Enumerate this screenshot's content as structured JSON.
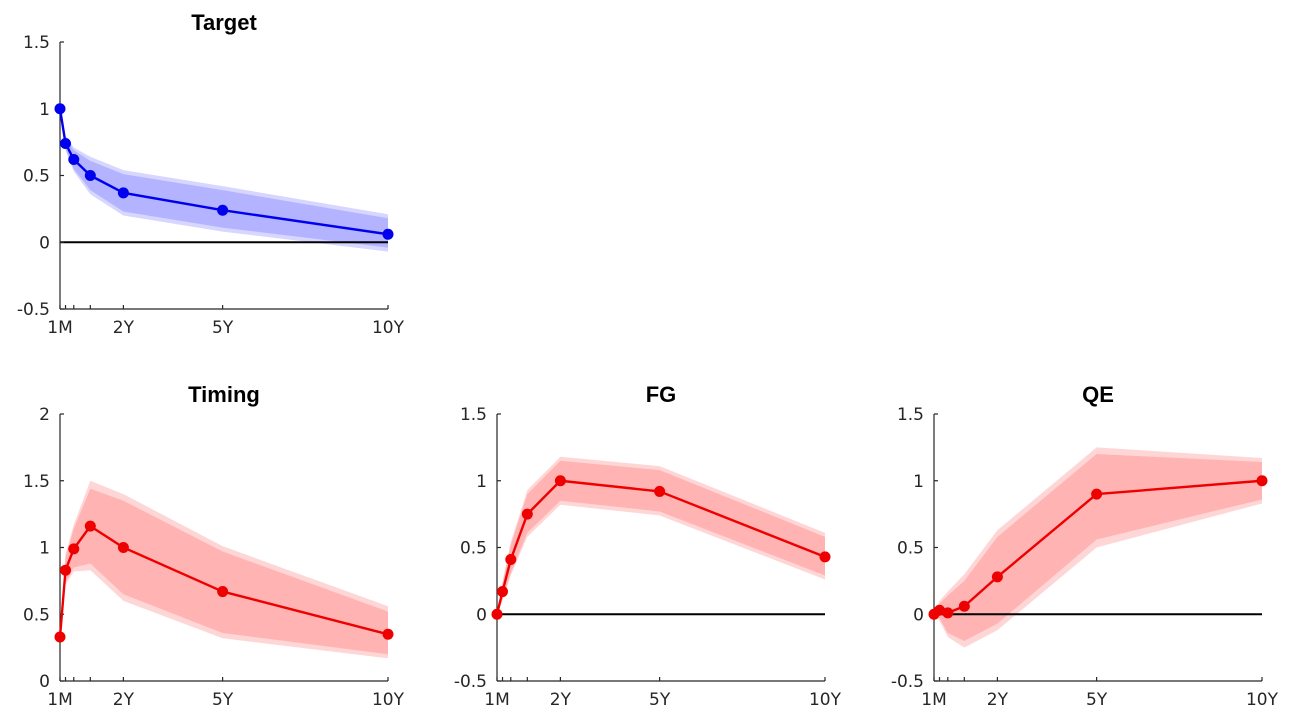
{
  "chart_data": [
    {
      "type": "line",
      "title": "Target",
      "color": "#0000ee",
      "band_color": "#0000ff",
      "x_unit": "months",
      "x": [
        1,
        3,
        6,
        12,
        24,
        60,
        120
      ],
      "xticks": [
        {
          "v": 1,
          "label": "1M"
        },
        {
          "v": 24,
          "label": "2Y"
        },
        {
          "v": 60,
          "label": "5Y"
        },
        {
          "v": 120,
          "label": "10Y"
        }
      ],
      "minor_xticks": [
        3,
        6,
        12
      ],
      "ylim": [
        -0.5,
        1.5
      ],
      "yticks": [
        {
          "v": -0.5,
          "label": "-0.5"
        },
        {
          "v": 0,
          "label": "0"
        },
        {
          "v": 0.5,
          "label": "0.5"
        },
        {
          "v": 1,
          "label": "1"
        },
        {
          "v": 1.5,
          "label": "1.5"
        }
      ],
      "values": [
        1.0,
        0.74,
        0.62,
        0.5,
        0.37,
        0.24,
        0.06
      ],
      "band_outer": {
        "lower": [
          1.0,
          0.69,
          0.53,
          0.36,
          0.2,
          0.08,
          -0.07
        ],
        "upper": [
          1.0,
          0.8,
          0.71,
          0.64,
          0.54,
          0.42,
          0.21
        ]
      },
      "band_inner": {
        "lower": [
          1.0,
          0.7,
          0.55,
          0.39,
          0.23,
          0.11,
          -0.04
        ],
        "upper": [
          1.0,
          0.78,
          0.69,
          0.61,
          0.51,
          0.39,
          0.18
        ]
      }
    },
    {
      "type": "line",
      "title": "Timing",
      "color": "#ee0000",
      "band_color": "#ff0000",
      "x_unit": "months",
      "x": [
        1,
        3,
        6,
        12,
        24,
        60,
        120
      ],
      "xticks": [
        {
          "v": 1,
          "label": "1M"
        },
        {
          "v": 24,
          "label": "2Y"
        },
        {
          "v": 60,
          "label": "5Y"
        },
        {
          "v": 120,
          "label": "10Y"
        }
      ],
      "minor_xticks": [
        3,
        6,
        12
      ],
      "ylim": [
        0,
        2
      ],
      "yticks": [
        {
          "v": 0,
          "label": "0"
        },
        {
          "v": 0.5,
          "label": "0.5"
        },
        {
          "v": 1,
          "label": "1"
        },
        {
          "v": 1.5,
          "label": "1.5"
        },
        {
          "v": 2,
          "label": "2"
        }
      ],
      "values": [
        0.33,
        0.83,
        0.99,
        1.16,
        1.0,
        0.67,
        0.35
      ],
      "band_outer": {
        "lower": [
          0.33,
          0.72,
          0.82,
          0.83,
          0.6,
          0.32,
          0.17
        ],
        "upper": [
          0.33,
          0.95,
          1.17,
          1.5,
          1.4,
          1.01,
          0.56
        ]
      },
      "band_inner": {
        "lower": [
          0.33,
          0.74,
          0.85,
          0.88,
          0.65,
          0.36,
          0.2
        ],
        "upper": [
          0.33,
          0.93,
          1.14,
          1.44,
          1.35,
          0.97,
          0.52
        ]
      }
    },
    {
      "type": "line",
      "title": "FG",
      "color": "#ee0000",
      "band_color": "#ff0000",
      "x_unit": "months",
      "x": [
        1,
        3,
        6,
        12,
        24,
        60,
        120
      ],
      "xticks": [
        {
          "v": 1,
          "label": "1M"
        },
        {
          "v": 24,
          "label": "2Y"
        },
        {
          "v": 60,
          "label": "5Y"
        },
        {
          "v": 120,
          "label": "10Y"
        }
      ],
      "minor_xticks": [
        3,
        6,
        12
      ],
      "ylim": [
        -0.5,
        1.5
      ],
      "yticks": [
        {
          "v": -0.5,
          "label": "-0.5"
        },
        {
          "v": 0,
          "label": "0"
        },
        {
          "v": 0.5,
          "label": "0.5"
        },
        {
          "v": 1,
          "label": "1"
        },
        {
          "v": 1.5,
          "label": "1.5"
        }
      ],
      "values": [
        0.0,
        0.17,
        0.41,
        0.75,
        1.0,
        0.92,
        0.43
      ],
      "band_outer": {
        "lower": [
          0.0,
          0.1,
          0.29,
          0.58,
          0.82,
          0.74,
          0.26
        ],
        "upper": [
          0.0,
          0.24,
          0.54,
          0.93,
          1.18,
          1.11,
          0.61
        ]
      },
      "band_inner": {
        "lower": [
          0.0,
          0.11,
          0.31,
          0.61,
          0.85,
          0.77,
          0.29
        ],
        "upper": [
          0.0,
          0.23,
          0.52,
          0.9,
          1.15,
          1.08,
          0.58
        ]
      }
    },
    {
      "type": "line",
      "title": "QE",
      "color": "#ee0000",
      "band_color": "#ff0000",
      "x_unit": "months",
      "x": [
        1,
        3,
        6,
        12,
        24,
        60,
        120
      ],
      "xticks": [
        {
          "v": 1,
          "label": "1M"
        },
        {
          "v": 24,
          "label": "2Y"
        },
        {
          "v": 60,
          "label": "5Y"
        },
        {
          "v": 120,
          "label": "10Y"
        }
      ],
      "minor_xticks": [
        3,
        6,
        12
      ],
      "ylim": [
        -0.5,
        1.5
      ],
      "yticks": [
        {
          "v": -0.5,
          "label": "-0.5"
        },
        {
          "v": 0,
          "label": "0"
        },
        {
          "v": 0.5,
          "label": "0.5"
        },
        {
          "v": 1,
          "label": "1"
        },
        {
          "v": 1.5,
          "label": "1.5"
        }
      ],
      "values": [
        0.0,
        0.03,
        0.01,
        0.06,
        0.28,
        0.9,
        1.0
      ],
      "band_outer": {
        "lower": [
          0.0,
          -0.05,
          -0.17,
          -0.25,
          -0.12,
          0.5,
          0.83
        ],
        "upper": [
          0.0,
          0.1,
          0.17,
          0.3,
          0.63,
          1.25,
          1.17
        ]
      },
      "band_inner": {
        "lower": [
          0.0,
          -0.03,
          -0.14,
          -0.2,
          -0.07,
          0.56,
          0.86
        ],
        "upper": [
          0.0,
          0.08,
          0.14,
          0.25,
          0.58,
          1.2,
          1.14
        ]
      }
    }
  ]
}
